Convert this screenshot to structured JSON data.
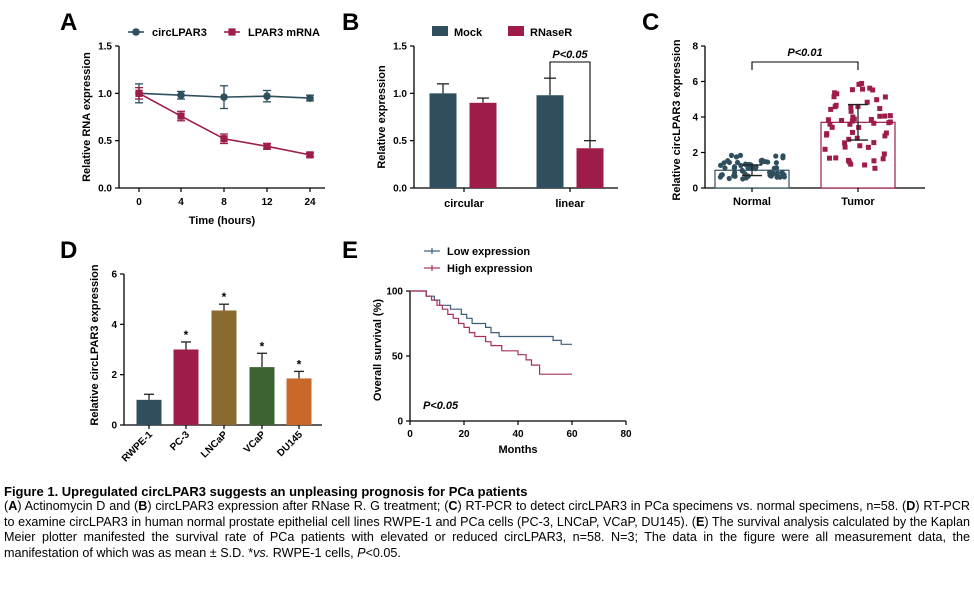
{
  "figure": {
    "panel_letters": [
      "A",
      "B",
      "C",
      "D",
      "E"
    ],
    "caption": {
      "title": "Figure 1. Upregulated circLPAR3 suggests an unpleasing prognosis for PCa patients",
      "parts": [
        {
          "t": "(",
          "b": false,
          "i": false
        },
        {
          "t": "A",
          "b": true,
          "i": false
        },
        {
          "t": ") Actinomycin D and (",
          "b": false,
          "i": false
        },
        {
          "t": "B",
          "b": true,
          "i": false
        },
        {
          "t": ") circLPAR3 expression after RNase R. G treatment; (",
          "b": false,
          "i": false
        },
        {
          "t": "C",
          "b": true,
          "i": false
        },
        {
          "t": ") RT-PCR to detect circLPAR3 in PCa specimens vs. normal specimens, n=58. (",
          "b": false,
          "i": false
        },
        {
          "t": "D",
          "b": true,
          "i": false
        },
        {
          "t": ") RT-PCR to examine circLPAR3 in human normal prostate epithelial cell lines RWPE-1 and PCa cells (PC-3, LNCaP, VCaP, DU145). (",
          "b": false,
          "i": false
        },
        {
          "t": "E",
          "b": true,
          "i": false
        },
        {
          "t": ") The survival analysis calculated by the Kaplan Meier plotter manifested the survival rate of PCa patients with elevated or reduced circLPAR3, n=58. N=3; The data in the figure were all measurement data, the manifestation of which was as mean ± S.D. *",
          "b": false,
          "i": false
        },
        {
          "t": "vs.",
          "b": false,
          "i": true
        },
        {
          "t": " RWPE-1 cells, ",
          "b": false,
          "i": false
        },
        {
          "t": "P",
          "b": false,
          "i": true
        },
        {
          "t": "<0.05.",
          "b": false,
          "i": false
        }
      ]
    }
  },
  "chart_data": [
    {
      "panel": "A",
      "type": "line",
      "xlabel": "Time (hours)",
      "ylabel": "Relative RNA expression",
      "x": [
        0,
        4,
        8,
        12,
        24
      ],
      "xticks": [
        "0",
        "4",
        "8",
        "12",
        "24"
      ],
      "ylim": [
        0,
        1.5
      ],
      "yticks": [
        "0.0",
        "0.5",
        "1.0",
        "1.5"
      ],
      "legend_position": "top",
      "series": [
        {
          "name": "circLPAR3",
          "color": "#2f4f5e",
          "marker": "circle",
          "values": [
            1.0,
            0.98,
            0.96,
            0.97,
            0.95
          ],
          "errors": [
            0.1,
            0.04,
            0.12,
            0.06,
            0.03
          ]
        },
        {
          "name": "LPAR3 mRNA",
          "color": "#9e1c4a",
          "marker": "square",
          "values": [
            1.0,
            0.76,
            0.52,
            0.44,
            0.35
          ],
          "errors": [
            0.06,
            0.05,
            0.05,
            0.03,
            0.02
          ]
        }
      ]
    },
    {
      "panel": "B",
      "type": "bar",
      "ylabel": "Relative expression",
      "categories": [
        "circular",
        "linear"
      ],
      "ylim": [
        0,
        1.5
      ],
      "yticks": [
        "0.0",
        "0.5",
        "1.0",
        "1.5"
      ],
      "legend_position": "top",
      "annotation": "P<0.05",
      "series": [
        {
          "name": "Mock",
          "color": "#2f4f5e",
          "values": [
            1.0,
            0.98
          ],
          "errors": [
            0.1,
            0.18
          ]
        },
        {
          "name": "RNaseR",
          "color": "#9e1c4a",
          "values": [
            0.9,
            0.42
          ],
          "errors": [
            0.05,
            0.08
          ]
        }
      ]
    },
    {
      "panel": "C",
      "type": "bar",
      "ylabel": "Relative circLPAR3 expression",
      "categories": [
        "Normal",
        "Tumor"
      ],
      "values": [
        1.0,
        3.7
      ],
      "ylim": [
        0,
        8
      ],
      "yticks": [
        "0",
        "2",
        "4",
        "6",
        "8"
      ],
      "annotation": "P<0.01",
      "point_colors": [
        "#2f4f5e",
        "#9e1c4a"
      ],
      "points_per_group": 58
    },
    {
      "panel": "D",
      "type": "bar",
      "ylabel": "Relative circLPAR3 expression",
      "categories": [
        "RWPE-1",
        "PC-3",
        "LNCaP",
        "VCaP",
        "DU145"
      ],
      "values": [
        1.0,
        3.0,
        4.55,
        2.3,
        1.85
      ],
      "errors": [
        0.22,
        0.3,
        0.25,
        0.55,
        0.28
      ],
      "significance": [
        "",
        "*",
        "*",
        "*",
        "*"
      ],
      "colors": [
        "#2f4f5e",
        "#9e1c4a",
        "#8a6a2e",
        "#3d6332",
        "#c8692a"
      ],
      "ylim": [
        0,
        6
      ],
      "yticks": [
        "0",
        "2",
        "4",
        "6"
      ]
    },
    {
      "panel": "E",
      "type": "line",
      "xlabel": "Months",
      "ylabel": "Overall survival (%)",
      "xlim": [
        0,
        80
      ],
      "xticks": [
        "0",
        "20",
        "40",
        "60",
        "80"
      ],
      "ylim": [
        0,
        100
      ],
      "yticks": [
        "0",
        "50",
        "100"
      ],
      "legend_position": "top-left",
      "annotation": "P<0.05",
      "series": [
        {
          "name": "Low expression",
          "color": "#3b5d78",
          "x": [
            0,
            6,
            9,
            11,
            13,
            15,
            17,
            19,
            21,
            23,
            25,
            28,
            30,
            33,
            36,
            43,
            47,
            53,
            56,
            60
          ],
          "y": [
            100,
            96,
            93,
            89,
            89,
            86,
            86,
            82,
            79,
            75,
            75,
            72,
            68,
            65,
            65,
            65,
            65,
            62,
            59,
            59
          ]
        },
        {
          "name": "High expression",
          "color": "#a8305c",
          "x": [
            0,
            6,
            8,
            10,
            12,
            14,
            16,
            18,
            20,
            22,
            24,
            26,
            28,
            30,
            34,
            37,
            40,
            43,
            45,
            48,
            60
          ],
          "y": [
            100,
            96,
            93,
            89,
            86,
            82,
            79,
            75,
            72,
            68,
            65,
            65,
            61,
            58,
            54,
            54,
            51,
            47,
            43,
            36,
            36
          ]
        }
      ]
    }
  ]
}
